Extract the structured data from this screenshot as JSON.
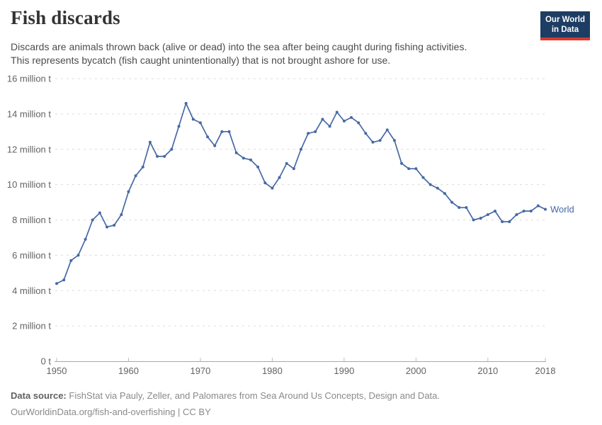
{
  "header": {
    "title": "Fish discards",
    "subtitle_line1": "Discards are animals thrown back (alive or dead) into the sea after being caught during fishing activities.",
    "subtitle_line2": "This represents bycatch (fish caught unintentionally) that is not brought ashore for use.",
    "logo": {
      "line1": "Our World",
      "line2": "in Data",
      "bg_color": "#1d3d63",
      "accent_color": "#d93a2d"
    }
  },
  "chart_data": {
    "type": "line",
    "title": "Fish discards",
    "xlabel": "",
    "ylabel": "",
    "xlim": [
      1950,
      2018
    ],
    "ylim": [
      0,
      16
    ],
    "x_ticks": [
      1950,
      1960,
      1970,
      1980,
      1990,
      2000,
      2010,
      2018
    ],
    "y_ticks": [
      0,
      2,
      4,
      6,
      8,
      10,
      12,
      14,
      16
    ],
    "y_tick_labels": [
      "0 t",
      "2 million t",
      "4 million t",
      "6 million t",
      "8 million t",
      "10 million t",
      "12 million t",
      "14 million t",
      "16 million t"
    ],
    "grid": "horizontal-dashed",
    "legend_position": "end-of-line",
    "series": [
      {
        "name": "World",
        "color": "#4569a5",
        "x": [
          1950,
          1951,
          1952,
          1953,
          1954,
          1955,
          1956,
          1957,
          1958,
          1959,
          1960,
          1961,
          1962,
          1963,
          1964,
          1965,
          1966,
          1967,
          1968,
          1969,
          1970,
          1971,
          1972,
          1973,
          1974,
          1975,
          1976,
          1977,
          1978,
          1979,
          1980,
          1981,
          1982,
          1983,
          1984,
          1985,
          1986,
          1987,
          1988,
          1989,
          1990,
          1991,
          1992,
          1993,
          1994,
          1995,
          1996,
          1997,
          1998,
          1999,
          2000,
          2001,
          2002,
          2003,
          2004,
          2005,
          2006,
          2007,
          2008,
          2009,
          2010,
          2011,
          2012,
          2013,
          2014,
          2015,
          2016,
          2017,
          2018
        ],
        "values": [
          4.4,
          4.6,
          5.7,
          6.0,
          6.9,
          8.0,
          8.4,
          7.6,
          7.7,
          8.3,
          9.6,
          10.5,
          11.0,
          12.4,
          11.6,
          11.6,
          12.0,
          13.3,
          14.6,
          13.7,
          13.5,
          12.7,
          12.2,
          13.0,
          13.0,
          11.8,
          11.5,
          11.4,
          11.0,
          10.1,
          9.8,
          10.4,
          11.2,
          10.9,
          12.0,
          12.9,
          13.0,
          13.7,
          13.3,
          14.1,
          13.6,
          13.8,
          13.5,
          12.9,
          12.4,
          12.5,
          13.1,
          12.5,
          11.2,
          10.9,
          10.9,
          10.4,
          10.0,
          9.8,
          9.5,
          9.0,
          8.7,
          8.7,
          8.0,
          8.1,
          8.3,
          8.5,
          7.9,
          7.9,
          8.3,
          8.5,
          8.5,
          8.8,
          8.6
        ]
      }
    ]
  },
  "footer": {
    "source_label": "Data source:",
    "source_text": "FishStat via Pauly, Zeller, and Palomares from Sea Around Us Concepts, Design and Data.",
    "link_text": "OurWorldinData.org/fish-and-overfishing | CC BY"
  }
}
